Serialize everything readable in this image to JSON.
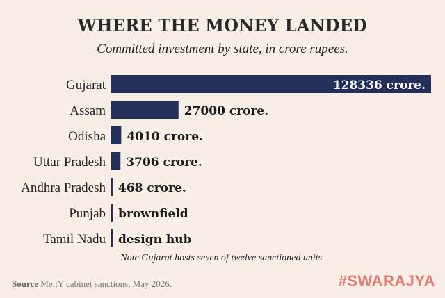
{
  "header": {
    "title": "WHERE THE MONEY LANDED",
    "subtitle": "Committed investment by state, in crore rupees."
  },
  "footer": {
    "note": "Note Gujarat hosts seven of twelve sanctioned units.",
    "source_label": "Source",
    "source_text": "MeitY cabinet sanctions, May 2026.",
    "brand": "#SWARAJYA"
  },
  "colors": {
    "bar": "#243059",
    "background": "#f7efe6",
    "brand": "#e07a73"
  },
  "chart_data": {
    "type": "bar",
    "orientation": "horizontal",
    "title": "WHERE THE MONEY LANDED",
    "subtitle": "Committed investment by state, in crore rupees.",
    "categories": [
      "Gujarat",
      "Assam",
      "Odisha",
      "Uttar Pradesh",
      "Andhra Pradesh",
      "Punjab",
      "Tamil Nadu"
    ],
    "values": [
      128336,
      27000,
      4010,
      3706,
      468,
      null,
      null
    ],
    "value_labels": [
      "128336 crore.",
      "27000 crore.",
      "4010 crore.",
      "3706 crore.",
      "468 crore.",
      "brownfield",
      "design hub"
    ],
    "xlabel": "",
    "ylabel": "",
    "xlim": [
      0,
      128336
    ],
    "grid": false,
    "legend": "none"
  }
}
